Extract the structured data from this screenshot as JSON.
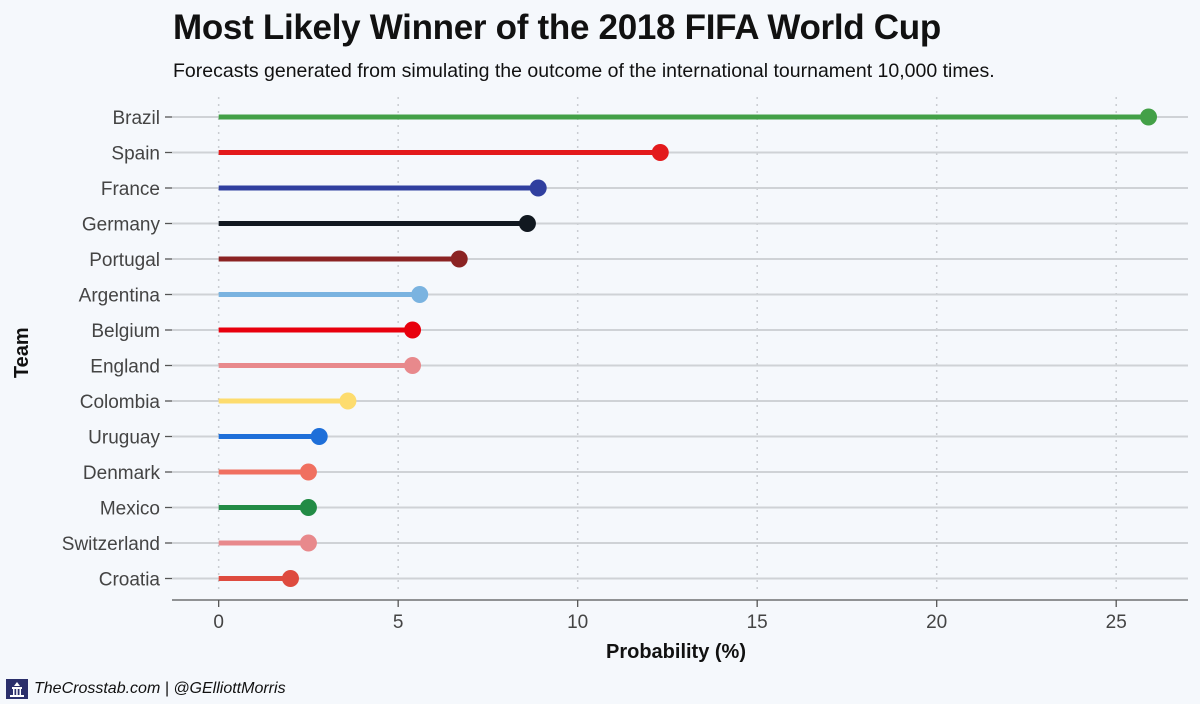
{
  "chart_data": {
    "type": "lollipop",
    "title": "Most Likely Winner of the 2018 FIFA World Cup",
    "subtitle": "Forecasts generated from simulating the outcome of the international tournament 10,000 times.",
    "xlabel": "Probability (%)",
    "ylabel": "Team",
    "xlim": [
      -1.3,
      27
    ],
    "xticks": [
      0,
      5,
      10,
      15,
      20,
      25
    ],
    "grid": true,
    "categories": [
      "Brazil",
      "Spain",
      "France",
      "Germany",
      "Portugal",
      "Argentina",
      "Belgium",
      "England",
      "Colombia",
      "Uruguay",
      "Denmark",
      "Mexico",
      "Switzerland",
      "Croatia"
    ],
    "values": [
      25.9,
      12.3,
      8.9,
      8.6,
      6.7,
      5.6,
      5.4,
      5.4,
      3.6,
      2.8,
      2.5,
      2.5,
      2.5,
      2.0
    ],
    "colors": [
      "#43a047",
      "#e31a1c",
      "#303f9f",
      "#111820",
      "#8b2323",
      "#7ab3e0",
      "#e8000d",
      "#e8898c",
      "#fddc6e",
      "#1e6fd9",
      "#f07060",
      "#228b45",
      "#e8898c",
      "#de4b3f"
    ]
  },
  "footer": {
    "credit": "TheCrosstab.com | @GElliottMorris"
  }
}
